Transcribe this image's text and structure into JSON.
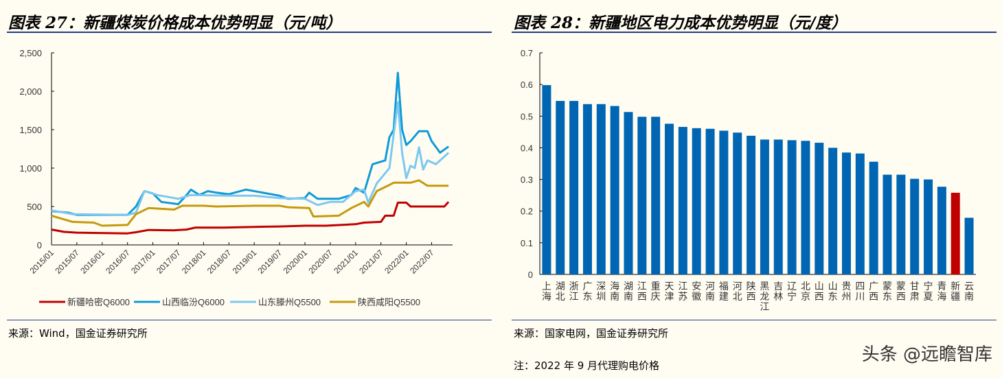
{
  "left": {
    "title": "图表 27：新疆煤炭价格成本优势明显（元/吨）",
    "source": "来源：Wind，国金证券研究所"
  },
  "right": {
    "title": "图表 28：新疆地区电力成本优势明显（元/度）",
    "source": "来源：国家电网，国金证券研究所",
    "note": "注：2022 年 9 月代理购电价格"
  },
  "watermark": "头条 @远瞻智库",
  "chart_data": [
    {
      "type": "line",
      "ylim": [
        0,
        2500
      ],
      "yticks": [
        "0",
        "500",
        "1,000",
        "1,500",
        "2,000",
        "2,500"
      ],
      "xticks": [
        "2015/01",
        "2015/07",
        "2016/01",
        "2016/07",
        "2017/01",
        "2017/07",
        "2018/01",
        "2018/07",
        "2019/01",
        "2019/07",
        "2020/01",
        "2020/07",
        "2021/01",
        "2021/07",
        "2022/01",
        "2022/07"
      ],
      "legend_position": "bottom",
      "grid": false,
      "series": [
        {
          "name": "新疆哈密Q6000",
          "color": "#c00000",
          "points": [
            [
              "2015/01",
              200
            ],
            [
              "2015/04",
              170
            ],
            [
              "2015/07",
              160
            ],
            [
              "2016/07",
              150
            ],
            [
              "2016/09",
              165
            ],
            [
              "2016/12",
              195
            ],
            [
              "2017/06",
              190
            ],
            [
              "2017/09",
              200
            ],
            [
              "2017/11",
              225
            ],
            [
              "2018/06",
              225
            ],
            [
              "2019/01",
              235
            ],
            [
              "2019/07",
              240
            ],
            [
              "2020/01",
              250
            ],
            [
              "2020/06",
              250
            ],
            [
              "2021/01",
              270
            ],
            [
              "2021/03",
              290
            ],
            [
              "2021/07",
              300
            ],
            [
              "2021/08",
              380
            ],
            [
              "2021/10",
              380
            ],
            [
              "2021/11",
              550
            ],
            [
              "2022/01",
              550
            ],
            [
              "2022/02",
              500
            ],
            [
              "2022/10",
              500
            ],
            [
              "2022/11",
              560
            ]
          ]
        },
        {
          "name": "山西临汾Q6000",
          "color": "#0e9ad7",
          "points": [
            [
              "2015/01",
              440
            ],
            [
              "2015/05",
              420
            ],
            [
              "2015/07",
              390
            ],
            [
              "2016/07",
              390
            ],
            [
              "2016/09",
              500
            ],
            [
              "2016/11",
              700
            ],
            [
              "2017/01",
              670
            ],
            [
              "2017/03",
              560
            ],
            [
              "2017/07",
              530
            ],
            [
              "2017/09",
              650
            ],
            [
              "2017/10",
              720
            ],
            [
              "2017/12",
              650
            ],
            [
              "2018/02",
              700
            ],
            [
              "2018/04",
              680
            ],
            [
              "2018/07",
              660
            ],
            [
              "2018/11",
              720
            ],
            [
              "2019/02",
              690
            ],
            [
              "2019/07",
              640
            ],
            [
              "2019/09",
              600
            ],
            [
              "2020/01",
              610
            ],
            [
              "2020/02",
              680
            ],
            [
              "2020/04",
              600
            ],
            [
              "2020/09",
              600
            ],
            [
              "2020/12",
              650
            ],
            [
              "2021/01",
              740
            ],
            [
              "2021/03",
              680
            ],
            [
              "2021/05",
              1050
            ],
            [
              "2021/08",
              1100
            ],
            [
              "2021/09",
              1400
            ],
            [
              "2021/10",
              1500
            ],
            [
              "2021/11",
              2240
            ],
            [
              "2021/12",
              1500
            ],
            [
              "2022/01",
              1300
            ],
            [
              "2022/02",
              1350
            ],
            [
              "2022/04",
              1480
            ],
            [
              "2022/06",
              1480
            ],
            [
              "2022/07",
              1350
            ],
            [
              "2022/09",
              1200
            ],
            [
              "2022/11",
              1280
            ]
          ]
        },
        {
          "name": "山东滕州Q5500",
          "color": "#7cc8f0",
          "points": [
            [
              "2015/01",
              450
            ],
            [
              "2015/06",
              400
            ],
            [
              "2016/07",
              390
            ],
            [
              "2016/09",
              420
            ],
            [
              "2016/11",
              700
            ],
            [
              "2017/02",
              650
            ],
            [
              "2017/07",
              600
            ],
            [
              "2017/10",
              650
            ],
            [
              "2018/07",
              640
            ],
            [
              "2019/01",
              640
            ],
            [
              "2019/07",
              610
            ],
            [
              "2020/01",
              600
            ],
            [
              "2020/04",
              520
            ],
            [
              "2020/07",
              560
            ],
            [
              "2020/10",
              560
            ],
            [
              "2021/01",
              700
            ],
            [
              "2021/03",
              720
            ],
            [
              "2021/04",
              550
            ],
            [
              "2021/06",
              800
            ],
            [
              "2021/09",
              1000
            ],
            [
              "2021/11",
              1860
            ],
            [
              "2021/12",
              1200
            ],
            [
              "2022/01",
              870
            ],
            [
              "2022/02",
              1030
            ],
            [
              "2022/03",
              1000
            ],
            [
              "2022/04",
              1270
            ],
            [
              "2022/05",
              980
            ],
            [
              "2022/06",
              1100
            ],
            [
              "2022/08",
              1050
            ],
            [
              "2022/10",
              1150
            ],
            [
              "2022/11",
              1200
            ]
          ]
        },
        {
          "name": "陕西咸阳Q5500",
          "color": "#c49a0c",
          "points": [
            [
              "2015/01",
              380
            ],
            [
              "2015/06",
              300
            ],
            [
              "2015/11",
              290
            ],
            [
              "2016/01",
              250
            ],
            [
              "2016/07",
              260
            ],
            [
              "2016/09",
              400
            ],
            [
              "2016/12",
              480
            ],
            [
              "2017/06",
              460
            ],
            [
              "2017/08",
              510
            ],
            [
              "2018/01",
              510
            ],
            [
              "2018/04",
              500
            ],
            [
              "2019/01",
              510
            ],
            [
              "2019/07",
              510
            ],
            [
              "2019/09",
              490
            ],
            [
              "2020/02",
              480
            ],
            [
              "2020/03",
              370
            ],
            [
              "2020/09",
              380
            ],
            [
              "2020/12",
              480
            ],
            [
              "2021/03",
              560
            ],
            [
              "2021/04",
              500
            ],
            [
              "2021/06",
              700
            ],
            [
              "2021/09",
              780
            ],
            [
              "2021/10",
              810
            ],
            [
              "2022/02",
              810
            ],
            [
              "2022/04",
              840
            ],
            [
              "2022/06",
              770
            ],
            [
              "2022/11",
              770
            ]
          ]
        }
      ]
    },
    {
      "type": "bar",
      "ylim": [
        0,
        0.7
      ],
      "yticks": [
        "0",
        "0.1",
        "0.2",
        "0.3",
        "0.4",
        "0.5",
        "0.6",
        "0.7"
      ],
      "grid": false,
      "bar_color": "#0066b3",
      "highlight_color": "#c00000",
      "highlight": "新疆",
      "categories": [
        "上海",
        "湖北",
        "浙江",
        "广东",
        "深圳",
        "海南",
        "湖南",
        "江西",
        "重庆",
        "天津",
        "江苏",
        "安徽",
        "河南",
        "福建",
        "河北",
        "陕西",
        "黑龙江",
        "吉林",
        "辽宁",
        "北京",
        "山西",
        "山东",
        "贵州",
        "四川",
        "广西",
        "蒙东",
        "蒙西",
        "甘肃",
        "宁夏",
        "青海",
        "新疆",
        "云南"
      ],
      "values": [
        0.598,
        0.548,
        0.548,
        0.538,
        0.538,
        0.532,
        0.513,
        0.498,
        0.498,
        0.476,
        0.466,
        0.462,
        0.46,
        0.454,
        0.448,
        0.438,
        0.426,
        0.426,
        0.424,
        0.422,
        0.416,
        0.4,
        0.385,
        0.382,
        0.356,
        0.315,
        0.315,
        0.302,
        0.3,
        0.277,
        0.258,
        0.179
      ]
    }
  ]
}
